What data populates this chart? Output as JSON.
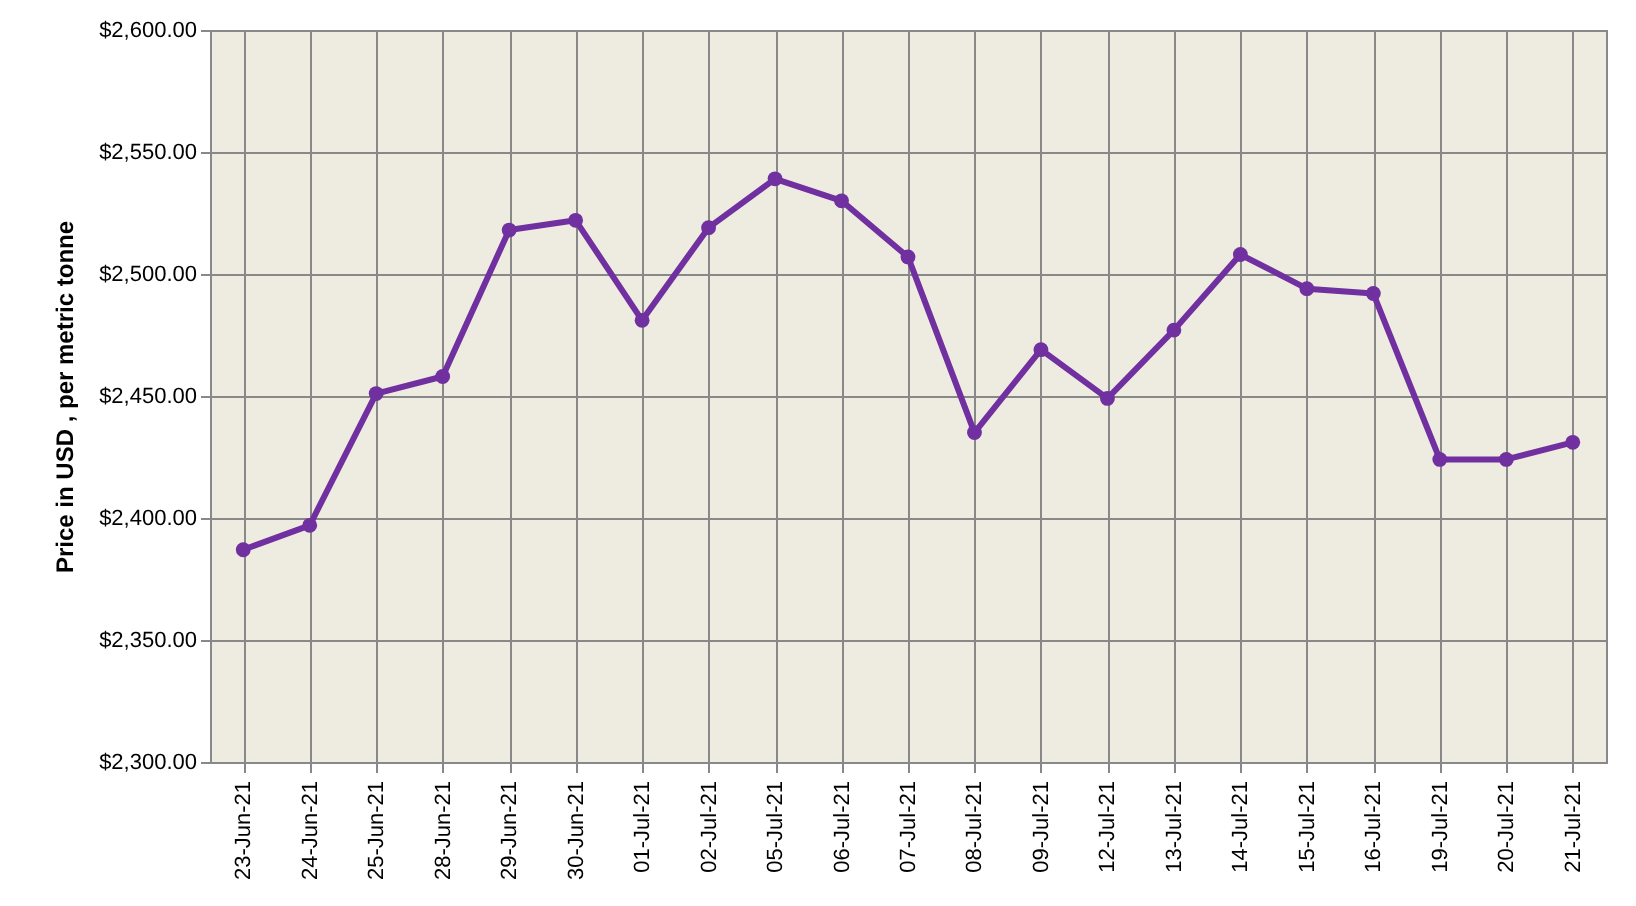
{
  "chart_data": {
    "type": "line",
    "ylabel": "Price in USD , per metric tonne",
    "categories": [
      "23-Jun-21",
      "24-Jun-21",
      "25-Jun-21",
      "28-Jun-21",
      "29-Jun-21",
      "30-Jun-21",
      "01-Jul-21",
      "02-Jul-21",
      "05-Jul-21",
      "06-Jul-21",
      "07-Jul-21",
      "08-Jul-21",
      "09-Jul-21",
      "12-Jul-21",
      "13-Jul-21",
      "14-Jul-21",
      "15-Jul-21",
      "16-Jul-21",
      "19-Jul-21",
      "20-Jul-21",
      "21-Jul-21"
    ],
    "series": [
      {
        "color": "#7030a0",
        "values": [
          2387,
          2397,
          2451,
          2458,
          2518,
          2522,
          2481,
          2519,
          2539,
          2530,
          2507,
          2435,
          2469,
          2449,
          2477,
          2508,
          2494,
          2492,
          2424,
          2424,
          2431
        ]
      }
    ],
    "ylim": [
      2300,
      2600
    ],
    "yticks": [
      {
        "value": 2300,
        "label": "$2,300.00"
      },
      {
        "value": 2350,
        "label": "$2,350.00"
      },
      {
        "value": 2400,
        "label": "$2,400.00"
      },
      {
        "value": 2450,
        "label": "$2,450.00"
      },
      {
        "value": 2500,
        "label": "$2,500.00"
      },
      {
        "value": 2550,
        "label": "$2,550.00"
      },
      {
        "value": 2600,
        "label": "$2,600.00"
      }
    ],
    "grid": true,
    "marker": "circle",
    "line_style": "solid"
  }
}
